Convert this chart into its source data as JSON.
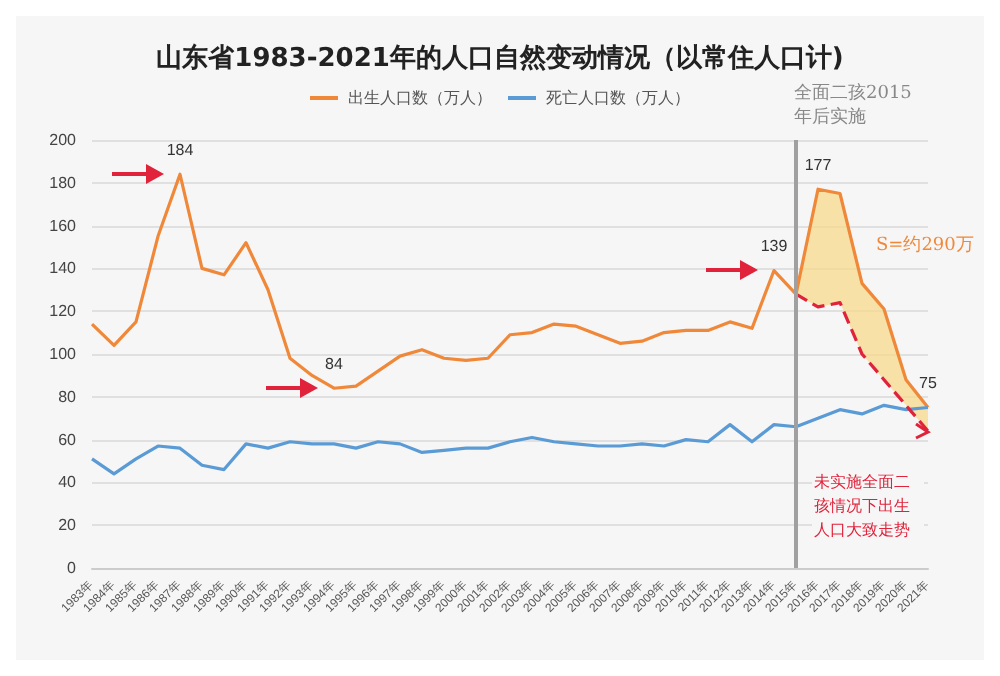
{
  "chart_data": {
    "type": "line",
    "title": "山东省1983-2021年的人口自然变动情况（以常住人口计)",
    "categories": [
      "1983年",
      "1984年",
      "1985年",
      "1986年",
      "1987年",
      "1988年",
      "1989年",
      "1990年",
      "1991年",
      "1992年",
      "1993年",
      "1994年",
      "1995年",
      "1996年",
      "1997年",
      "1998年",
      "1999年",
      "2000年",
      "2001年",
      "2002年",
      "2003年",
      "2004年",
      "2005年",
      "2006年",
      "2007年",
      "2008年",
      "2009年",
      "2010年",
      "2011年",
      "2012年",
      "2013年",
      "2014年",
      "2015年",
      "2016年",
      "2017年",
      "2018年",
      "2019年",
      "2020年",
      "2021年"
    ],
    "series": [
      {
        "name": "出生人口数（万人）",
        "color": "#f0883a",
        "values": [
          114,
          104,
          115,
          155,
          184,
          140,
          137,
          152,
          130,
          98,
          90,
          84,
          85,
          92,
          99,
          102,
          98,
          97,
          98,
          109,
          110,
          114,
          113,
          109,
          105,
          106,
          110,
          111,
          111,
          115,
          112,
          139,
          128,
          177,
          175,
          133,
          121,
          88,
          75
        ],
        "value_labels": [
          null,
          null,
          null,
          null,
          "184",
          null,
          null,
          null,
          null,
          null,
          null,
          "84",
          null,
          null,
          null,
          null,
          null,
          null,
          null,
          null,
          null,
          null,
          null,
          null,
          null,
          null,
          null,
          null,
          null,
          null,
          null,
          "139",
          null,
          "177",
          null,
          null,
          null,
          null,
          "75"
        ],
        "lower": [
          null,
          null,
          null,
          null,
          null,
          null,
          null,
          null,
          null,
          null,
          null,
          null,
          null,
          null,
          null,
          null,
          null,
          null,
          null,
          null,
          null,
          null,
          null,
          null,
          null,
          null,
          null,
          null,
          null,
          null,
          null,
          null,
          128,
          122,
          124,
          100,
          88,
          76,
          64
        ],
        "upper": [
          null,
          null,
          null,
          null,
          null,
          null,
          null,
          null,
          null,
          null,
          null,
          null,
          null,
          null,
          null,
          null,
          null,
          null,
          null,
          null,
          null,
          null,
          null,
          null,
          null,
          null,
          null,
          null,
          null,
          null,
          null,
          null,
          128,
          177,
          175,
          133,
          121,
          88,
          75
        ]
      },
      {
        "name": "死亡人口数（万人）",
        "color": "#5b9bd5",
        "values": [
          51,
          44,
          51,
          57,
          56,
          48,
          46,
          58,
          56,
          59,
          58,
          58,
          56,
          59,
          58,
          54,
          55,
          56,
          56,
          59,
          61,
          59,
          58,
          57,
          57,
          58,
          57,
          60,
          59,
          67,
          59,
          67,
          66,
          70,
          74,
          72,
          76,
          74,
          75
        ]
      },
      {
        "color": "#e0223a",
        "line_style": "dashed",
        "values": [
          null,
          null,
          null,
          null,
          null,
          null,
          null,
          null,
          null,
          null,
          null,
          null,
          null,
          null,
          null,
          null,
          null,
          null,
          null,
          null,
          null,
          null,
          null,
          null,
          null,
          null,
          null,
          null,
          null,
          null,
          null,
          null,
          128,
          122,
          124,
          100,
          88,
          76,
          64
        ]
      }
    ],
    "ylim": [
      0,
      200
    ],
    "yticks": [
      0,
      20,
      40,
      60,
      80,
      100,
      120,
      140,
      160,
      180,
      200
    ],
    "grid": "y",
    "legend": "top",
    "marker": "none",
    "ref_lines": [
      {
        "axis": "x",
        "value": "2015年",
        "label": "全面二孩2015年后实施",
        "color": "#a0a0a0"
      }
    ],
    "annotations": [
      "S=约290万",
      "未实施全面二孩情况下出生人口大致走势"
    ]
  }
}
